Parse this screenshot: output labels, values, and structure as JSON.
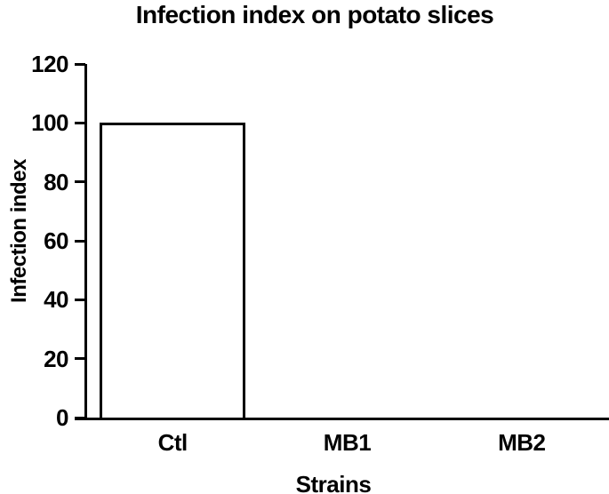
{
  "figure": {
    "background_color": "#ffffff",
    "foreground_color": "#000000"
  },
  "chart_data": {
    "type": "bar",
    "title": "Infection index on potato slices",
    "xlabel": "Strains",
    "ylabel": "Infection index",
    "categories": [
      "Ctl",
      "MB1",
      "MB2"
    ],
    "values": [
      100,
      0,
      0
    ],
    "ylim": [
      0,
      120
    ],
    "yticks": [
      0,
      20,
      40,
      60,
      80,
      100,
      120
    ],
    "grid": false,
    "legend": "none",
    "bar_fill": "#ffffff",
    "bar_border": "#000000",
    "axis_color": "#000000"
  }
}
